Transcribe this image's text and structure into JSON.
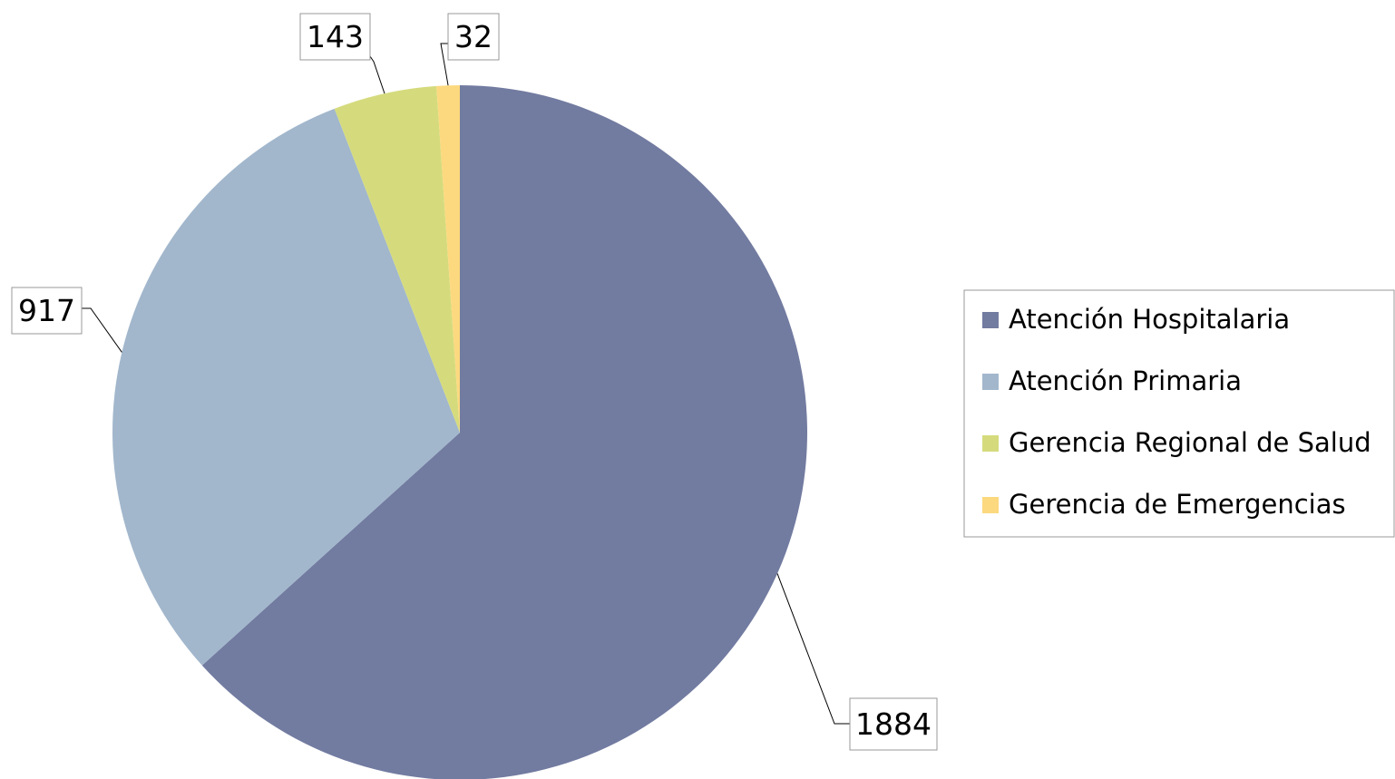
{
  "chart_data": {
    "type": "pie",
    "categories": [
      "Atención Hospitalaria",
      "Atención Primaria",
      "Gerencia Regional de Salud",
      "Gerencia de Emergencias"
    ],
    "values": [
      1884,
      917,
      143,
      32
    ],
    "colors": [
      "#727ba0",
      "#a2b7cc",
      "#d5db7d",
      "#fcd97f"
    ],
    "legend": "right"
  }
}
